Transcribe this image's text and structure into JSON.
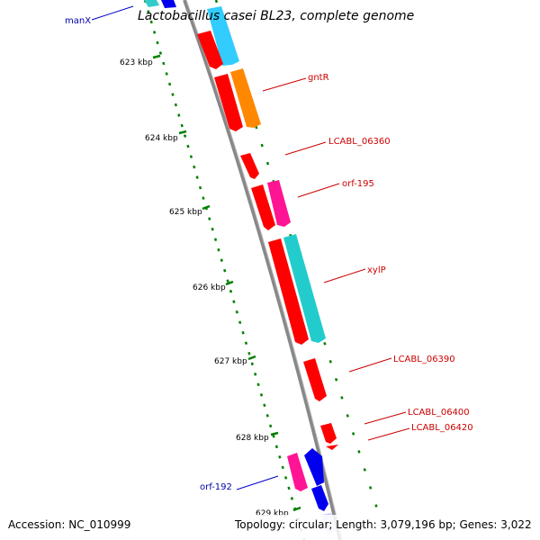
{
  "title": "Lactobacillus casei BL23, complete genome",
  "footer": {
    "accession": "Accession: NC_010999",
    "summary": "Topology: circular; Length: 3,079,196 bp; Genes: 3,022"
  },
  "ticks": [
    "623 kbp",
    "624 kbp",
    "625 kbp",
    "626 kbp",
    "627 kbp",
    "628 kbp",
    "629 kbp"
  ],
  "gene_labels": [
    {
      "text": "manX",
      "color": "#0000aa"
    },
    {
      "text": "gntR",
      "color": "#cc0000"
    },
    {
      "text": "LCABL_06360",
      "color": "#cc0000"
    },
    {
      "text": "orf-195",
      "color": "#cc0000"
    },
    {
      "text": "xylP",
      "color": "#cc0000"
    },
    {
      "text": "LCABL_06390",
      "color": "#cc0000"
    },
    {
      "text": "LCABL_06400",
      "color": "#cc0000"
    },
    {
      "text": "LCABL_06420",
      "color": "#cc0000"
    },
    {
      "text": "orf-192",
      "color": "#0000aa"
    }
  ],
  "colors": {
    "backbone": "#888888",
    "tick": "#008000",
    "cds": "#ff0000",
    "cyan": "#33ccff",
    "orange": "#ff8800",
    "pink": "#ff1493",
    "teal": "#22cccc",
    "blue": "#0000ee",
    "lavender": "#ccccff"
  }
}
